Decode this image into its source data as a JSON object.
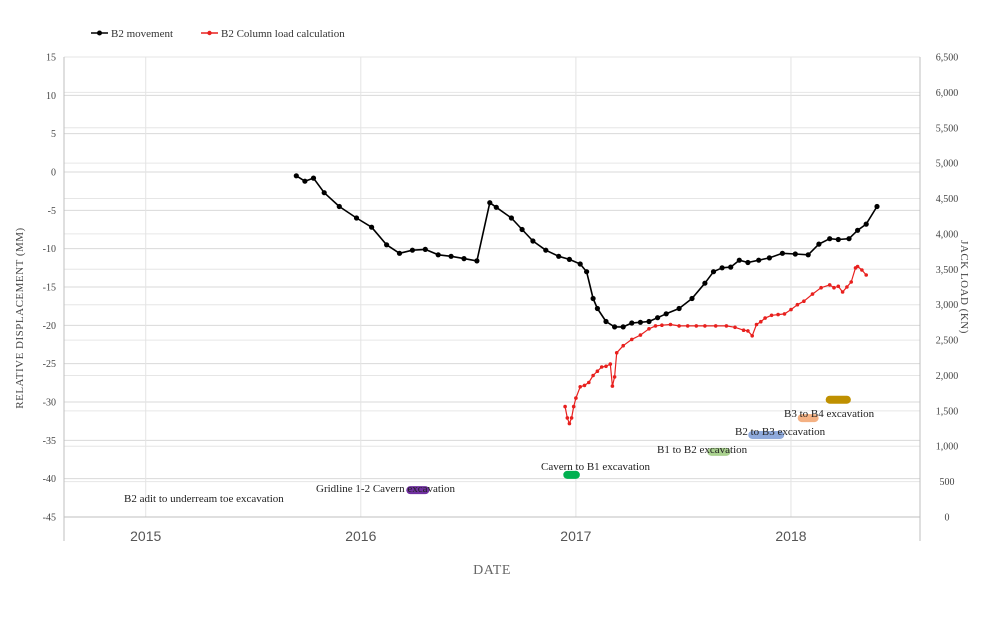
{
  "chart_data": {
    "type": "line",
    "title": "",
    "xlabel": "DATE",
    "ylabel": "RELATIVE DISPLACEMENT (MM)",
    "y2label": "JACK LOAD (KN)",
    "ylim": [
      -45,
      15
    ],
    "y2lim": [
      0,
      6500
    ],
    "y_ticks": [
      "15",
      "10",
      "5",
      "0",
      "-5",
      "-10",
      "-15",
      "-20",
      "-25",
      "-30",
      "-35",
      "-40",
      "-45"
    ],
    "y2_ticks": [
      "6,500",
      "6,000",
      "5,500",
      "5,000",
      "4,500",
      "4,000",
      "3,500",
      "3,000",
      "2,500",
      "2,000",
      "1,500",
      "1,000",
      "500",
      "0"
    ],
    "x_ticks": [
      {
        "label": "2015",
        "t": 2015.0
      },
      {
        "label": "2016",
        "t": 2016.0
      },
      {
        "label": "2017",
        "t": 2017.0
      },
      {
        "label": "2018",
        "t": 2018.0
      }
    ],
    "xlim": [
      2014.62,
      2018.6
    ],
    "grid": true,
    "legend_position": "top-left",
    "series": [
      {
        "name": "B2 movement",
        "axis": "left",
        "color": "#000000",
        "x": [
          2015.7,
          2015.74,
          2015.78,
          2015.83,
          2015.9,
          2015.98,
          2016.05,
          2016.12,
          2016.18,
          2016.24,
          2016.3,
          2016.36,
          2016.42,
          2016.48,
          2016.54,
          2016.6,
          2016.63,
          2016.7,
          2016.75,
          2016.8,
          2016.86,
          2016.92,
          2016.97,
          2017.02,
          2017.05,
          2017.08,
          2017.1,
          2017.14,
          2017.18,
          2017.22,
          2017.26,
          2017.3,
          2017.34,
          2017.38,
          2017.42,
          2017.48,
          2017.54,
          2017.6,
          2017.64,
          2017.68,
          2017.72,
          2017.76,
          2017.8,
          2017.85,
          2017.9,
          2017.96,
          2018.02,
          2018.08,
          2018.13,
          2018.18,
          2018.22,
          2018.27,
          2018.31,
          2018.35,
          2018.4
        ],
        "y": [
          -0.5,
          -1.2,
          -0.8,
          -2.7,
          -4.5,
          -6.0,
          -7.2,
          -9.5,
          -10.6,
          -10.2,
          -10.1,
          -10.8,
          -11.0,
          -11.3,
          -11.6,
          -4.0,
          -4.6,
          -6.0,
          -7.5,
          -9.0,
          -10.2,
          -11.0,
          -11.4,
          -12.0,
          -13.0,
          -16.5,
          -17.8,
          -19.5,
          -20.2,
          -20.2,
          -19.7,
          -19.6,
          -19.5,
          -19.0,
          -18.5,
          -17.8,
          -16.5,
          -14.5,
          -13.0,
          -12.5,
          -12.4,
          -11.5,
          -11.8,
          -11.5,
          -11.2,
          -10.6,
          -10.7,
          -10.8,
          -9.4,
          -8.7,
          -8.8,
          -8.7,
          -7.6,
          -6.8,
          -4.5
        ]
      },
      {
        "name": "B2 Column load calculation",
        "axis": "right",
        "color": "#e8201e",
        "x": [
          2016.95,
          2016.96,
          2016.97,
          2016.98,
          2016.99,
          2017.0,
          2017.02,
          2017.04,
          2017.06,
          2017.08,
          2017.1,
          2017.12,
          2017.14,
          2017.16,
          2017.17,
          2017.18,
          2017.19,
          2017.22,
          2017.26,
          2017.3,
          2017.34,
          2017.37,
          2017.4,
          2017.44,
          2017.48,
          2017.52,
          2017.56,
          2017.6,
          2017.65,
          2017.7,
          2017.74,
          2017.78,
          2017.8,
          2017.82,
          2017.84,
          2017.86,
          2017.88,
          2017.91,
          2017.94,
          2017.97,
          2018.0,
          2018.03,
          2018.06,
          2018.1,
          2018.14,
          2018.18,
          2018.2,
          2018.22,
          2018.24,
          2018.26,
          2018.28,
          2018.3,
          2018.31,
          2018.33,
          2018.35
        ],
        "y": [
          1560,
          1400,
          1320,
          1400,
          1560,
          1680,
          1840,
          1860,
          1900,
          2000,
          2060,
          2120,
          2130,
          2160,
          1850,
          1980,
          2320,
          2420,
          2510,
          2570,
          2660,
          2700,
          2710,
          2720,
          2700,
          2700,
          2700,
          2700,
          2700,
          2700,
          2680,
          2640,
          2630,
          2560,
          2720,
          2760,
          2810,
          2850,
          2860,
          2870,
          2930,
          3000,
          3050,
          3150,
          3240,
          3280,
          3240,
          3260,
          3180,
          3250,
          3320,
          3520,
          3540,
          3490,
          3420
        ]
      }
    ],
    "phases": [
      {
        "label": "B2 adit to underream toe excavation",
        "start": 2016.23,
        "end": 2016.3,
        "y": -41.5,
        "color": "#7030a0"
      },
      {
        "label": "Gridline 1-2 Cavern excavation",
        "start": 2016.96,
        "end": 2017.0,
        "y": -39.5,
        "color": "#00b050"
      },
      {
        "label": "Cavern to B1 excavation",
        "start": 2017.63,
        "end": 2017.7,
        "y": -36.5,
        "color": "#a9d18e"
      },
      {
        "label": "B1 to B2 excavation",
        "start": 2017.82,
        "end": 2017.95,
        "y": -34.3,
        "color": "#8faadc"
      },
      {
        "label": "B2 to B3 excavation",
        "start": 2018.05,
        "end": 2018.11,
        "y": -32.1,
        "color": "#f4b183"
      },
      {
        "label": "B3 to B4 excavation",
        "start": 2018.18,
        "end": 2018.26,
        "y": -29.7,
        "color": "#bf9000"
      }
    ]
  }
}
